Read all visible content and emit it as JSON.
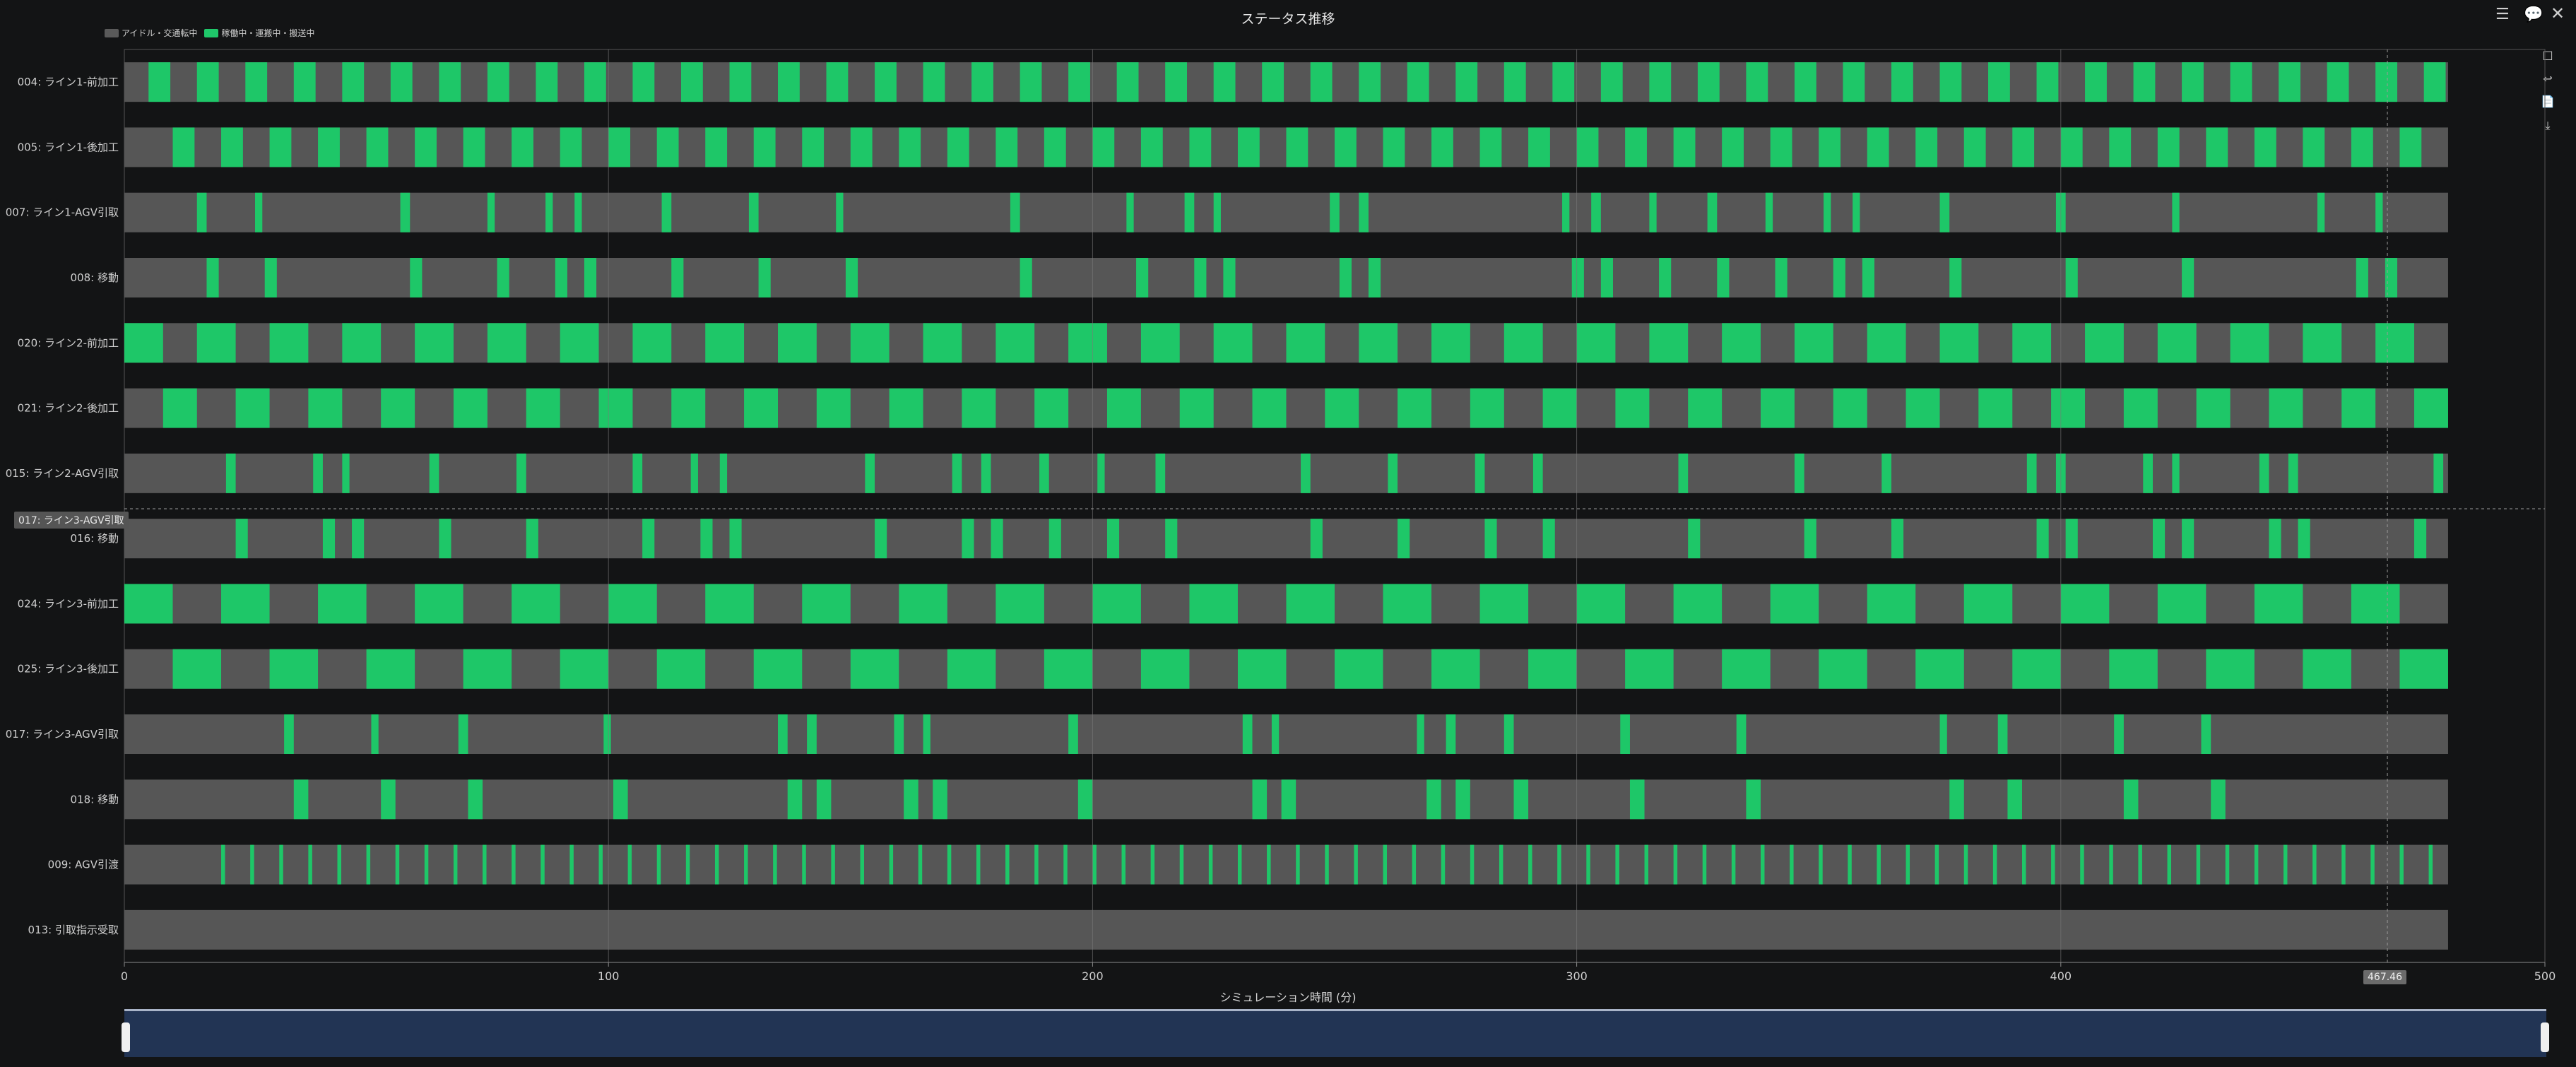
{
  "title": "ステータス推移",
  "legend": [
    {
      "label": "アイドル・交通転中",
      "color": "#5a5a5a"
    },
    {
      "label": "稼働中・運搬中・搬送中",
      "color": "#1fc86a"
    }
  ],
  "colors": {
    "idle": "#565656",
    "active": "#1ec768",
    "grid": "#3b3b3b",
    "axis": "#8a8a8a"
  },
  "hover_label": "017: ライン3-AGV引取",
  "cursor_label": "467.46",
  "toolbar_icons": [
    "list-icon",
    "comment-icon",
    "close-icon"
  ],
  "side_icons": [
    "zoom-select-icon",
    "zoom-reset-icon",
    "data-view-icon",
    "download-icon"
  ],
  "chart_data": {
    "type": "bar",
    "xlabel": "シミュレーション時間 (分)",
    "xlim": [
      0,
      500
    ],
    "xticks": [
      0,
      100,
      200,
      300,
      400,
      500
    ],
    "end_time": 480,
    "rows": [
      {
        "name": "004: ライン1-前加工",
        "pattern": {
          "start": 5,
          "dur": 4.5,
          "period": 10,
          "count": 48
        }
      },
      {
        "name": "005: ライン1-後加工",
        "pattern": {
          "start": 10,
          "dur": 4.5,
          "period": 10,
          "count": 47
        }
      },
      {
        "name": "007: ライン1-AGV引取",
        "segments": [
          [
            15,
            2
          ],
          [
            27,
            1.5
          ],
          [
            57,
            2
          ],
          [
            75,
            1.5
          ],
          [
            87,
            1.5
          ],
          [
            93,
            1.5
          ],
          [
            111,
            2
          ],
          [
            129,
            2
          ],
          [
            147,
            1.5
          ],
          [
            183,
            2
          ],
          [
            207,
            1.5
          ],
          [
            219,
            2
          ],
          [
            225,
            1.5
          ],
          [
            249,
            2
          ],
          [
            255,
            2
          ],
          [
            297,
            1.5
          ],
          [
            303,
            2
          ],
          [
            315,
            1.5
          ],
          [
            327,
            2
          ],
          [
            339,
            1.5
          ],
          [
            351,
            1.5
          ],
          [
            357,
            1.5
          ],
          [
            375,
            2
          ],
          [
            399,
            2
          ],
          [
            423,
            1.5
          ],
          [
            453,
            1.5
          ],
          [
            465,
            1.5
          ]
        ]
      },
      {
        "name": "008: 移動",
        "segments": [
          [
            17,
            2.5
          ],
          [
            29,
            2.5
          ],
          [
            59,
            2.5
          ],
          [
            77,
            2.5
          ],
          [
            89,
            2.5
          ],
          [
            95,
            2.5
          ],
          [
            113,
            2.5
          ],
          [
            131,
            2.5
          ],
          [
            149,
            2.5
          ],
          [
            185,
            2.5
          ],
          [
            209,
            2.5
          ],
          [
            221,
            2.5
          ],
          [
            227,
            2.5
          ],
          [
            251,
            2.5
          ],
          [
            257,
            2.5
          ],
          [
            299,
            2.5
          ],
          [
            305,
            2.5
          ],
          [
            317,
            2.5
          ],
          [
            329,
            2.5
          ],
          [
            341,
            2.5
          ],
          [
            353,
            2.5
          ],
          [
            359,
            2.5
          ],
          [
            377,
            2.5
          ],
          [
            401,
            2.5
          ],
          [
            425,
            2.5
          ],
          [
            461,
            2.5
          ],
          [
            467,
            2.5
          ]
        ]
      },
      {
        "name": "020: ライン2-前加工",
        "pattern": {
          "start": 0,
          "dur": 8,
          "period": 15,
          "count": 32
        }
      },
      {
        "name": "021: ライン2-後加工",
        "pattern": {
          "start": 8,
          "dur": 7,
          "period": 15,
          "count": 32
        }
      },
      {
        "name": "015: ライン2-AGV引取",
        "segments": [
          [
            21,
            2
          ],
          [
            39,
            2
          ],
          [
            45,
            1.5
          ],
          [
            63,
            2
          ],
          [
            81,
            2
          ],
          [
            105,
            2
          ],
          [
            117,
            1.5
          ],
          [
            123,
            1.5
          ],
          [
            153,
            2
          ],
          [
            171,
            2
          ],
          [
            177,
            2
          ],
          [
            189,
            2
          ],
          [
            201,
            1.5
          ],
          [
            213,
            2
          ],
          [
            243,
            2
          ],
          [
            261,
            2
          ],
          [
            279,
            2
          ],
          [
            291,
            2
          ],
          [
            321,
            2
          ],
          [
            345,
            2
          ],
          [
            363,
            2
          ],
          [
            393,
            2
          ],
          [
            399,
            2
          ],
          [
            417,
            2
          ],
          [
            423,
            1.5
          ],
          [
            441,
            2
          ],
          [
            447,
            2
          ],
          [
            477,
            2
          ]
        ]
      },
      {
        "name": "016: 移動",
        "segments": [
          [
            23,
            2.5
          ],
          [
            41,
            2.5
          ],
          [
            47,
            2.5
          ],
          [
            65,
            2.5
          ],
          [
            83,
            2.5
          ],
          [
            107,
            2.5
          ],
          [
            119,
            2.5
          ],
          [
            125,
            2.5
          ],
          [
            155,
            2.5
          ],
          [
            173,
            2.5
          ],
          [
            179,
            2.5
          ],
          [
            191,
            2.5
          ],
          [
            203,
            2.5
          ],
          [
            215,
            2.5
          ],
          [
            245,
            2.5
          ],
          [
            263,
            2.5
          ],
          [
            281,
            2.5
          ],
          [
            293,
            2.5
          ],
          [
            323,
            2.5
          ],
          [
            347,
            2.5
          ],
          [
            365,
            2.5
          ],
          [
            395,
            2.5
          ],
          [
            401,
            2.5
          ],
          [
            419,
            2.5
          ],
          [
            425,
            2.5
          ],
          [
            443,
            2.5
          ],
          [
            449,
            2.5
          ],
          [
            473,
            2.5
          ]
        ]
      },
      {
        "name": "024: ライン3-前加工",
        "pattern": {
          "start": 0,
          "dur": 10,
          "period": 20,
          "count": 24
        }
      },
      {
        "name": "025: ライン3-後加工",
        "pattern": {
          "start": 10,
          "dur": 10,
          "period": 20,
          "count": 24
        }
      },
      {
        "name": "017: ライン3-AGV引取",
        "segments": [
          [
            33,
            2
          ],
          [
            51,
            1.5
          ],
          [
            69,
            2
          ],
          [
            99,
            1.5
          ],
          [
            135,
            2
          ],
          [
            141,
            2
          ],
          [
            159,
            2
          ],
          [
            165,
            1.5
          ],
          [
            195,
            2
          ],
          [
            231,
            2
          ],
          [
            237,
            1.5
          ],
          [
            267,
            1.5
          ],
          [
            273,
            2
          ],
          [
            285,
            2
          ],
          [
            309,
            2
          ],
          [
            333,
            2
          ],
          [
            375,
            1.5
          ],
          [
            387,
            2
          ],
          [
            411,
            2
          ],
          [
            429,
            2
          ]
        ]
      },
      {
        "name": "018: 移動",
        "segments": [
          [
            35,
            3
          ],
          [
            53,
            3
          ],
          [
            71,
            3
          ],
          [
            101,
            3
          ],
          [
            137,
            3
          ],
          [
            143,
            3
          ],
          [
            161,
            3
          ],
          [
            167,
            3
          ],
          [
            197,
            3
          ],
          [
            233,
            3
          ],
          [
            239,
            3
          ],
          [
            269,
            3
          ],
          [
            275,
            3
          ],
          [
            287,
            3
          ],
          [
            311,
            3
          ],
          [
            335,
            3
          ],
          [
            377,
            3
          ],
          [
            389,
            3
          ],
          [
            413,
            3
          ],
          [
            431,
            3
          ]
        ]
      },
      {
        "name": "009: AGV引渡",
        "pattern": {
          "start": 20,
          "dur": 0.8,
          "period": 6,
          "count": 77
        }
      },
      {
        "name": "013: 引取指示受取",
        "segments": []
      }
    ]
  }
}
